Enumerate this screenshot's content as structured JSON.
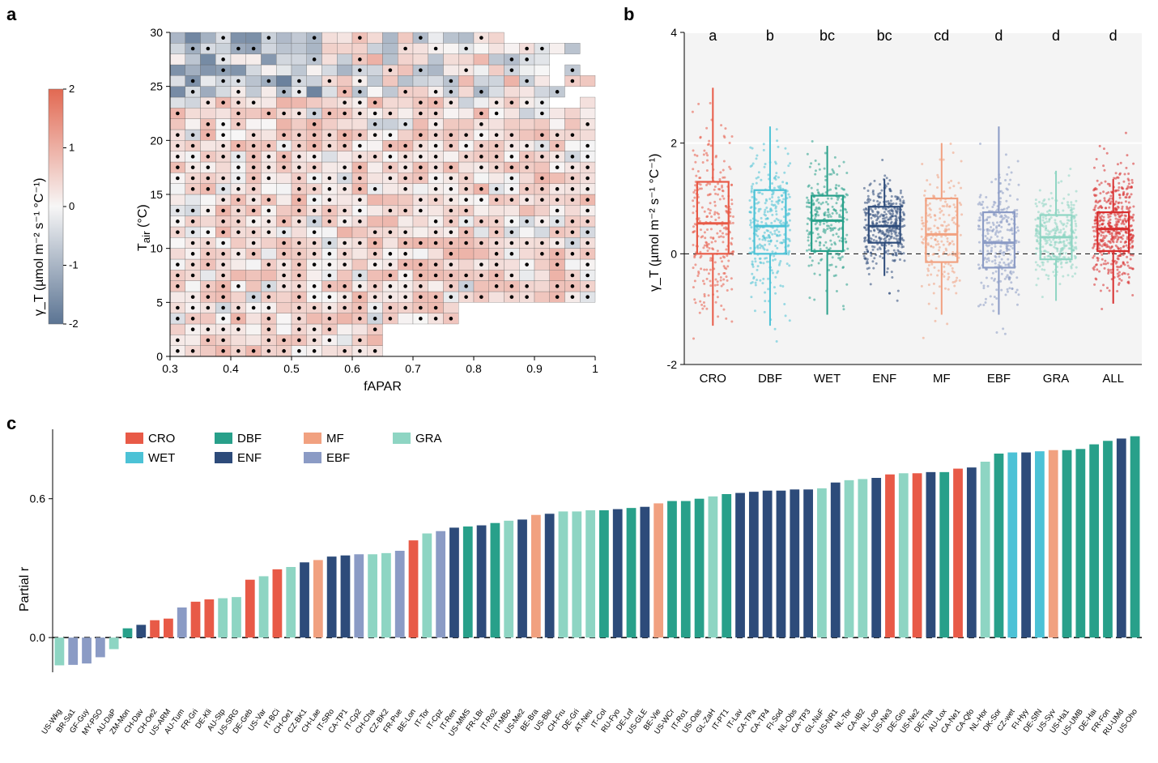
{
  "labels": {
    "panel_a": "a",
    "panel_b": "b",
    "panel_c": "c"
  },
  "panel_a": {
    "type": "heatmap",
    "xlabel": "fAPAR",
    "ylabel": "T_air (°C)",
    "colorbar_title": "γ_T (µmol m⁻² s⁻¹ °C⁻¹)",
    "x_start": 0.3,
    "x_end": 1.0,
    "x_step": 0.025,
    "y_start": 0,
    "y_end": 30,
    "y_step": 1,
    "x_ticks": [
      0.3,
      0.4,
      0.5,
      0.6,
      0.7,
      0.8,
      0.9,
      1.0
    ],
    "y_ticks": [
      0,
      5,
      10,
      15,
      20,
      25,
      30
    ],
    "colorbar": {
      "min": -2,
      "max": 2,
      "ticks": [
        -2,
        -1,
        0,
        1,
        2
      ]
    },
    "heatmap_seed": 71,
    "dot_seed": 91,
    "neg_color": "#5b7493",
    "zero_color": "#f7f6f6",
    "pos_color": "#e26952",
    "empty_color": "transparent",
    "grid_color": "#606060",
    "dot_color": "#000000",
    "dot_radius": 2.3
  },
  "panel_b": {
    "type": "boxplot_jitter",
    "ylabel": "γ_T (µmol m⁻² s⁻¹ °C⁻¹)",
    "ylim": [
      -2,
      4
    ],
    "y_ticks": [
      -2,
      0,
      2,
      4
    ],
    "grid_color": "#ececec",
    "background_color": "#f4f4f4",
    "axis_color": "#000000",
    "zero_line_style": "dashed",
    "zero_line_color": "#000000",
    "group_label_fontsize": 18,
    "categories": [
      {
        "key": "CRO",
        "label": "CRO",
        "group": "a",
        "color": "#e85a47",
        "median": 0.55,
        "q1": 0.0,
        "q3": 1.3,
        "wlo": -1.3,
        "whi": 3.0,
        "n": 280,
        "scatter_spread": 1.4
      },
      {
        "key": "DBF",
        "label": "DBF",
        "group": "b",
        "color": "#4cc2d6",
        "median": 0.5,
        "q1": 0.0,
        "q3": 1.15,
        "wlo": -1.3,
        "whi": 2.3,
        "n": 320,
        "scatter_spread": 1.1
      },
      {
        "key": "WET",
        "label": "WET",
        "group": "bc",
        "color": "#28a08a",
        "median": 0.6,
        "q1": 0.05,
        "q3": 1.05,
        "wlo": -1.1,
        "whi": 1.95,
        "n": 260,
        "scatter_spread": 0.9
      },
      {
        "key": "ENF",
        "label": "ENF",
        "group": "bc",
        "color": "#2d4b7a",
        "median": 0.5,
        "q1": 0.2,
        "q3": 0.85,
        "wlo": -0.4,
        "whi": 1.35,
        "n": 380,
        "scatter_spread": 0.7
      },
      {
        "key": "MF",
        "label": "MF",
        "group": "cd",
        "color": "#f1a180",
        "median": 0.35,
        "q1": -0.15,
        "q3": 1.0,
        "wlo": -1.1,
        "whi": 2.0,
        "n": 200,
        "scatter_spread": 0.95
      },
      {
        "key": "EBF",
        "label": "EBF",
        "group": "d",
        "color": "#8b9bc5",
        "median": 0.2,
        "q1": -0.25,
        "q3": 0.75,
        "wlo": -1.1,
        "whi": 2.3,
        "n": 300,
        "scatter_spread": 1.0
      },
      {
        "key": "GRA",
        "label": "GRA",
        "group": "d",
        "color": "#8ed5c3",
        "median": 0.3,
        "q1": -0.1,
        "q3": 0.7,
        "wlo": -0.85,
        "whi": 1.5,
        "n": 320,
        "scatter_spread": 0.7
      },
      {
        "key": "ALL",
        "label": "ALL",
        "group": "d",
        "color": "#d82f2f",
        "median": 0.45,
        "q1": 0.05,
        "q3": 0.75,
        "wlo": -0.9,
        "whi": 1.35,
        "n": 500,
        "scatter_spread": 0.9
      }
    ],
    "jitter_seed": 13,
    "box_width": 0.55,
    "point_radius": 1.5,
    "point_opacity": 0.55
  },
  "panel_c": {
    "type": "bar",
    "ylabel": "Partial r",
    "ylim": [
      -0.15,
      0.9
    ],
    "y_ticks": [
      0.0,
      0.6
    ],
    "zero_line_style": "dashed",
    "axis_color": "#000000",
    "bar_border": "none",
    "bar_width": 0.7,
    "tick_fontsize": 9.5,
    "legend": {
      "row1": [
        "CRO",
        "DBF",
        "MF",
        "GRA"
      ],
      "row2": [
        "WET",
        "ENF",
        "EBF"
      ]
    },
    "type_colors": {
      "CRO": "#e85a47",
      "WET": "#4cc2d6",
      "DBF": "#28a08a",
      "ENF": "#2d4b7a",
      "MF": "#f1a180",
      "EBF": "#8b9bc5",
      "GRA": "#8ed5c3"
    },
    "sites": [
      {
        "name": "US-Wkg",
        "type": "GRA",
        "value": -0.12
      },
      {
        "name": "BR-Sa1",
        "type": "EBF",
        "value": -0.118
      },
      {
        "name": "GF-Guy",
        "type": "EBF",
        "value": -0.112
      },
      {
        "name": "MY-PSO",
        "type": "EBF",
        "value": -0.085
      },
      {
        "name": "AU-DaP",
        "type": "GRA",
        "value": -0.05
      },
      {
        "name": "ZM-Mon",
        "type": "DBF",
        "value": 0.04
      },
      {
        "name": "CH-Dav",
        "type": "ENF",
        "value": 0.055
      },
      {
        "name": "CH-Oe2",
        "type": "CRO",
        "value": 0.075
      },
      {
        "name": "US-ARM",
        "type": "CRO",
        "value": 0.082
      },
      {
        "name": "AU-Tum",
        "type": "EBF",
        "value": 0.13
      },
      {
        "name": "FR-Gri",
        "type": "CRO",
        "value": 0.155
      },
      {
        "name": "DE-Kli",
        "type": "CRO",
        "value": 0.165
      },
      {
        "name": "AU-Stp",
        "type": "GRA",
        "value": 0.17
      },
      {
        "name": "US-SRG",
        "type": "GRA",
        "value": 0.175
      },
      {
        "name": "DE-Geb",
        "type": "CRO",
        "value": 0.25
      },
      {
        "name": "US-Var",
        "type": "GRA",
        "value": 0.265
      },
      {
        "name": "IT-BCi",
        "type": "CRO",
        "value": 0.295
      },
      {
        "name": "CH-Oe1",
        "type": "GRA",
        "value": 0.305
      },
      {
        "name": "CZ-BK1",
        "type": "ENF",
        "value": 0.325
      },
      {
        "name": "CH-Lae",
        "type": "MF",
        "value": 0.335
      },
      {
        "name": "IT-SRo",
        "type": "ENF",
        "value": 0.35
      },
      {
        "name": "CA-TP1",
        "type": "ENF",
        "value": 0.355
      },
      {
        "name": "IT-Cp2",
        "type": "EBF",
        "value": 0.36
      },
      {
        "name": "CH-Cha",
        "type": "GRA",
        "value": 0.36
      },
      {
        "name": "CZ-BK2",
        "type": "GRA",
        "value": 0.365
      },
      {
        "name": "FR-Pue",
        "type": "EBF",
        "value": 0.375
      },
      {
        "name": "BE-Lon",
        "type": "CRO",
        "value": 0.42
      },
      {
        "name": "IT-Tor",
        "type": "GRA",
        "value": 0.45
      },
      {
        "name": "IT-Cpz",
        "type": "EBF",
        "value": 0.46
      },
      {
        "name": "IT-Ren",
        "type": "ENF",
        "value": 0.475
      },
      {
        "name": "US-MMS",
        "type": "DBF",
        "value": 0.48
      },
      {
        "name": "FR-LBr",
        "type": "ENF",
        "value": 0.485
      },
      {
        "name": "IT-Ro2",
        "type": "DBF",
        "value": 0.495
      },
      {
        "name": "IT-MBo",
        "type": "GRA",
        "value": 0.505
      },
      {
        "name": "US-Me2",
        "type": "ENF",
        "value": 0.51
      },
      {
        "name": "BE-Bra",
        "type": "MF",
        "value": 0.53
      },
      {
        "name": "US-Blo",
        "type": "ENF",
        "value": 0.535
      },
      {
        "name": "CH-Fru",
        "type": "GRA",
        "value": 0.545
      },
      {
        "name": "DE-Gri",
        "type": "GRA",
        "value": 0.545
      },
      {
        "name": "AT-Neu",
        "type": "GRA",
        "value": 0.55
      },
      {
        "name": "IT-Col",
        "type": "DBF",
        "value": 0.55
      },
      {
        "name": "RU-Fyo",
        "type": "ENF",
        "value": 0.555
      },
      {
        "name": "DE-Lnf",
        "type": "DBF",
        "value": 0.56
      },
      {
        "name": "US-GLE",
        "type": "ENF",
        "value": 0.565
      },
      {
        "name": "BE-Vie",
        "type": "MF",
        "value": 0.58
      },
      {
        "name": "US-WCr",
        "type": "DBF",
        "value": 0.59
      },
      {
        "name": "IT-Ro1",
        "type": "DBF",
        "value": 0.59
      },
      {
        "name": "US-Oas",
        "type": "DBF",
        "value": 0.6
      },
      {
        "name": "GL-ZaH",
        "type": "GRA",
        "value": 0.61
      },
      {
        "name": "IT-PT1",
        "type": "DBF",
        "value": 0.62
      },
      {
        "name": "IT-Lav",
        "type": "ENF",
        "value": 0.625
      },
      {
        "name": "CA-TPa",
        "type": "ENF",
        "value": 0.63
      },
      {
        "name": "CA-TP4",
        "type": "ENF",
        "value": 0.635
      },
      {
        "name": "FI-Sod",
        "type": "ENF",
        "value": 0.635
      },
      {
        "name": "NL-Obs",
        "type": "ENF",
        "value": 0.64
      },
      {
        "name": "CA-TP3",
        "type": "ENF",
        "value": 0.64
      },
      {
        "name": "GL-NuF",
        "type": "GRA",
        "value": 0.645
      },
      {
        "name": "US-NR1",
        "type": "ENF",
        "value": 0.67
      },
      {
        "name": "NL-Tor",
        "type": "GRA",
        "value": 0.68
      },
      {
        "name": "CA-IB2",
        "type": "GRA",
        "value": 0.685
      },
      {
        "name": "NL-Loo",
        "type": "ENF",
        "value": 0.69
      },
      {
        "name": "US-Ne3",
        "type": "CRO",
        "value": 0.705
      },
      {
        "name": "DE-Gro",
        "type": "GRA",
        "value": 0.71
      },
      {
        "name": "US-Ne2",
        "type": "CRO",
        "value": 0.71
      },
      {
        "name": "DE-Tha",
        "type": "ENF",
        "value": 0.715
      },
      {
        "name": "AU-Lox",
        "type": "DBF",
        "value": 0.715
      },
      {
        "name": "CA-Ne1",
        "type": "CRO",
        "value": 0.73
      },
      {
        "name": "CA-Qfo",
        "type": "ENF",
        "value": 0.735
      },
      {
        "name": "NL-Hor",
        "type": "GRA",
        "value": 0.76
      },
      {
        "name": "DK-Sor",
        "type": "DBF",
        "value": 0.795
      },
      {
        "name": "CZ-wet",
        "type": "WET",
        "value": 0.8
      },
      {
        "name": "FI-Hyy",
        "type": "ENF",
        "value": 0.8
      },
      {
        "name": "DE-SfN",
        "type": "WET",
        "value": 0.805
      },
      {
        "name": "US-Syv",
        "type": "MF",
        "value": 0.81
      },
      {
        "name": "US-Ha1",
        "type": "DBF",
        "value": 0.81
      },
      {
        "name": "US-UMB",
        "type": "DBF",
        "value": 0.815
      },
      {
        "name": "DE-Hai",
        "type": "DBF",
        "value": 0.835
      },
      {
        "name": "FR-Fon",
        "type": "DBF",
        "value": 0.85
      },
      {
        "name": "RU-UMd",
        "type": "ENF",
        "value": 0.86
      },
      {
        "name": "US-Oho",
        "type": "DBF",
        "value": 0.87
      }
    ]
  }
}
